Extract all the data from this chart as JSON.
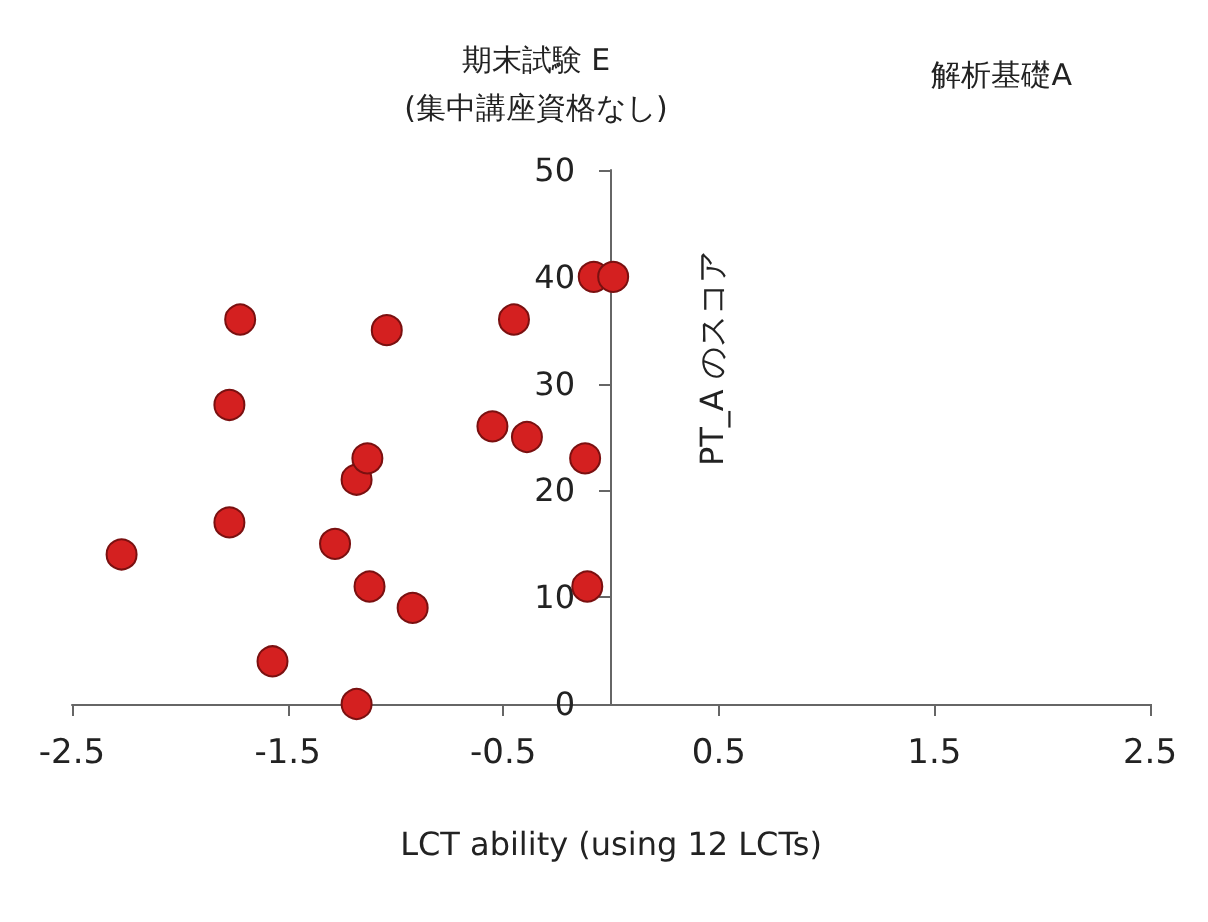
{
  "chart_data": {
    "type": "scatter",
    "title": "期末試験 E\n(集中講座資格なし)",
    "annotations": [
      "解析基礎A"
    ],
    "xlabel": "LCT ability (using 12 LCTs)",
    "ylabel": "PT_A のスコア",
    "x": [
      -2.27,
      -1.72,
      -1.77,
      -1.77,
      -1.57,
      -1.28,
      -1.18,
      -1.18,
      -1.13,
      -1.12,
      -1.04,
      -0.92,
      -0.55,
      -0.45,
      -0.39,
      -0.12,
      -0.11,
      -0.08,
      0.01
    ],
    "series": [
      {
        "color": "#d42020",
        "values": [
          14,
          36,
          28,
          17,
          4,
          15,
          0,
          21,
          23,
          11,
          35,
          9,
          26,
          36,
          25,
          23,
          11,
          40,
          40
        ]
      }
    ],
    "xlim": [
      -2.5,
      2.5
    ],
    "xticks": [
      -2.5,
      -1.5,
      -0.5,
      0.5,
      1.5,
      2.5
    ],
    "ylim": [
      0,
      50
    ],
    "yticks": [
      0,
      10,
      20,
      30,
      40,
      50
    ],
    "marker": "circle",
    "grid": false
  }
}
